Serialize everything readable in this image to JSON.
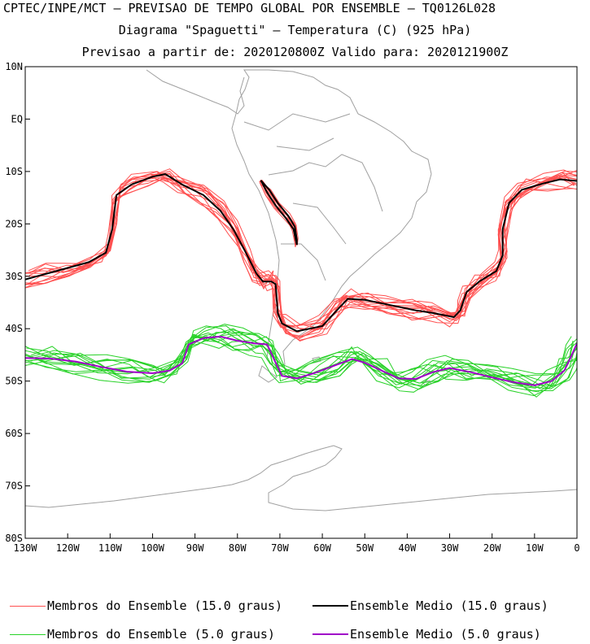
{
  "header": {
    "line1": "CPTEC/INPE/MCT – PREVISAO DE TEMPO GLOBAL POR ENSEMBLE – TQ0126L028",
    "line2": "Diagrama \"Spaguetti\" – Temperatura (C) (925 hPa)",
    "line3": "Previsao a partir de: 2020120800Z  Valido para: 2020121900Z"
  },
  "chart_data": {
    "type": "line",
    "title": "Diagrama \"Spaguetti\" – Temperatura (C) (925 hPa)",
    "xlim": [
      -130,
      0
    ],
    "ylim": [
      -80,
      10
    ],
    "x_ticks": [
      {
        "value": -130,
        "label": "130W"
      },
      {
        "value": -120,
        "label": "120W"
      },
      {
        "value": -110,
        "label": "110W"
      },
      {
        "value": -100,
        "label": "100W"
      },
      {
        "value": -90,
        "label": "90W"
      },
      {
        "value": -80,
        "label": "80W"
      },
      {
        "value": -70,
        "label": "70W"
      },
      {
        "value": -60,
        "label": "60W"
      },
      {
        "value": -50,
        "label": "50W"
      },
      {
        "value": -40,
        "label": "40W"
      },
      {
        "value": -30,
        "label": "30W"
      },
      {
        "value": -20,
        "label": "20W"
      },
      {
        "value": -10,
        "label": "10W"
      },
      {
        "value": 0,
        "label": "0"
      }
    ],
    "y_ticks": [
      {
        "value": 10,
        "label": "10N"
      },
      {
        "value": 0,
        "label": "EQ"
      },
      {
        "value": -10,
        "label": "10S"
      },
      {
        "value": -20,
        "label": "20S"
      },
      {
        "value": -30,
        "label": "30S"
      },
      {
        "value": -40,
        "label": "40S"
      },
      {
        "value": -50,
        "label": "50S"
      },
      {
        "value": -60,
        "label": "60S"
      },
      {
        "value": -70,
        "label": "70S"
      },
      {
        "value": -80,
        "label": "80S"
      }
    ],
    "series": [
      {
        "name": "Ensemble Medio (15.0 graus)",
        "color": "#000000",
        "points": [
          [
            -130,
            -30.6
          ],
          [
            -125,
            -29.5
          ],
          [
            -120,
            -28.4
          ],
          [
            -115,
            -27.3
          ],
          [
            -111,
            -25.5
          ],
          [
            -109.5,
            -21
          ],
          [
            -108.5,
            -14.5
          ],
          [
            -105,
            -12.5
          ],
          [
            -100,
            -11
          ],
          [
            -97,
            -10.5
          ],
          [
            -93,
            -12.5
          ],
          [
            -88,
            -14.5
          ],
          [
            -84,
            -17.5
          ],
          [
            -81,
            -21
          ],
          [
            -78,
            -25.5
          ],
          [
            -75.5,
            -29.5
          ],
          [
            -74,
            -31
          ],
          [
            -72,
            -31
          ],
          [
            -71,
            -31.5
          ],
          [
            -70.5,
            -37
          ],
          [
            -69.5,
            -39
          ],
          [
            -66,
            -40.5
          ],
          [
            -60,
            -39.5
          ],
          [
            -56,
            -36
          ],
          [
            -54,
            -34.3
          ],
          [
            -50,
            -34.5
          ],
          [
            -44,
            -35.5
          ],
          [
            -38,
            -36.5
          ],
          [
            -34,
            -37
          ],
          [
            -29,
            -37.8
          ],
          [
            -27.5,
            -36.5
          ],
          [
            -26,
            -33
          ],
          [
            -23,
            -31
          ],
          [
            -19,
            -29
          ],
          [
            -17.5,
            -26
          ],
          [
            -17.5,
            -21
          ],
          [
            -16,
            -16
          ],
          [
            -13,
            -13.5
          ],
          [
            -8,
            -12.3
          ],
          [
            -4,
            -11.5
          ],
          [
            0,
            -11.8
          ]
        ]
      },
      {
        "name": "Ensemble Medio (15.0 graus) - Andes",
        "color": "#000000",
        "points": [
          [
            -74.5,
            -11.7
          ],
          [
            -72.5,
            -13.5
          ],
          [
            -70.5,
            -16
          ],
          [
            -68,
            -18.5
          ],
          [
            -66.5,
            -20.5
          ],
          [
            -66,
            -23
          ],
          [
            -66,
            -24
          ],
          [
            -66.8,
            -21
          ],
          [
            -68.5,
            -19
          ],
          [
            -71,
            -16.5
          ],
          [
            -73,
            -14
          ],
          [
            -74.5,
            -11.7
          ]
        ]
      },
      {
        "name": "Ensemble Medio (5.0 graus)",
        "color": "#a000c8",
        "points": [
          [
            -130,
            -45.6
          ],
          [
            -124,
            -45.7
          ],
          [
            -118,
            -46.3
          ],
          [
            -112,
            -47.3
          ],
          [
            -106,
            -48.2
          ],
          [
            -100,
            -48.5
          ],
          [
            -96,
            -48
          ],
          [
            -93,
            -46.6
          ],
          [
            -91.5,
            -43
          ],
          [
            -88,
            -41.8
          ],
          [
            -84,
            -41.5
          ],
          [
            -80,
            -42.3
          ],
          [
            -76,
            -42.8
          ],
          [
            -73,
            -43
          ],
          [
            -71,
            -46.5
          ],
          [
            -69.5,
            -49
          ],
          [
            -66,
            -49.5
          ],
          [
            -62,
            -48.5
          ],
          [
            -57,
            -47
          ],
          [
            -53,
            -45.8
          ],
          [
            -50,
            -46.5
          ],
          [
            -46,
            -48
          ],
          [
            -42,
            -49.5
          ],
          [
            -38,
            -49.6
          ],
          [
            -34,
            -48.3
          ],
          [
            -30,
            -47.5
          ],
          [
            -25,
            -48.3
          ],
          [
            -20,
            -49.3
          ],
          [
            -15,
            -50.2
          ],
          [
            -10,
            -50.8
          ],
          [
            -6,
            -50
          ],
          [
            -3,
            -48
          ],
          [
            -1.5,
            -45.5
          ],
          [
            0,
            -42.8
          ]
        ]
      }
    ]
  },
  "legend": {
    "items": [
      {
        "label": "Membros do Ensemble (15.0 graus)",
        "color": "#ff5050"
      },
      {
        "label": "Ensemble Medio (15.0 graus)",
        "color": "#000000"
      },
      {
        "label": "Membros do Ensemble (5.0 graus)",
        "color": "#28d228"
      },
      {
        "label": "Ensemble Medio (5.0 graus)",
        "color": "#a000c8"
      }
    ]
  }
}
